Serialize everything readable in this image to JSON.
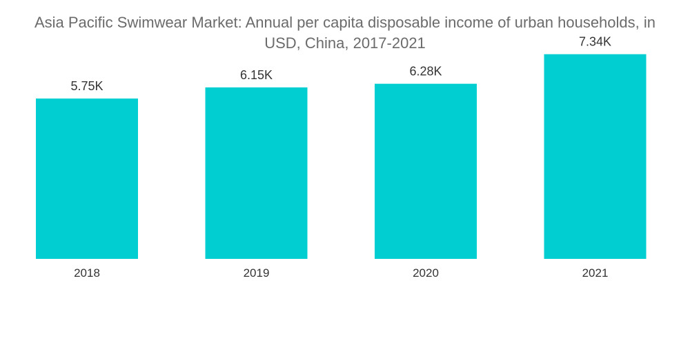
{
  "title_lines": [
    "Asia Pacific Swimwear Market: Annual per capita disposable income of urban households, in",
    "USD, China, 2017-2021"
  ],
  "chart_data": {
    "type": "bar",
    "title": "Asia Pacific Swimwear Market: Annual per capita disposable income of urban households, in USD, China, 2017-2021",
    "categories": [
      "2018",
      "2019",
      "2020",
      "2021"
    ],
    "values": [
      5750,
      6150,
      6280,
      7340
    ],
    "value_labels": [
      "5.75K",
      "6.15K",
      "6.28K",
      "7.34K"
    ],
    "xlabel": "",
    "ylabel": "",
    "ylim": [
      0,
      8000
    ],
    "grid": false,
    "legend": "none",
    "bar_color": "#00ced1"
  }
}
